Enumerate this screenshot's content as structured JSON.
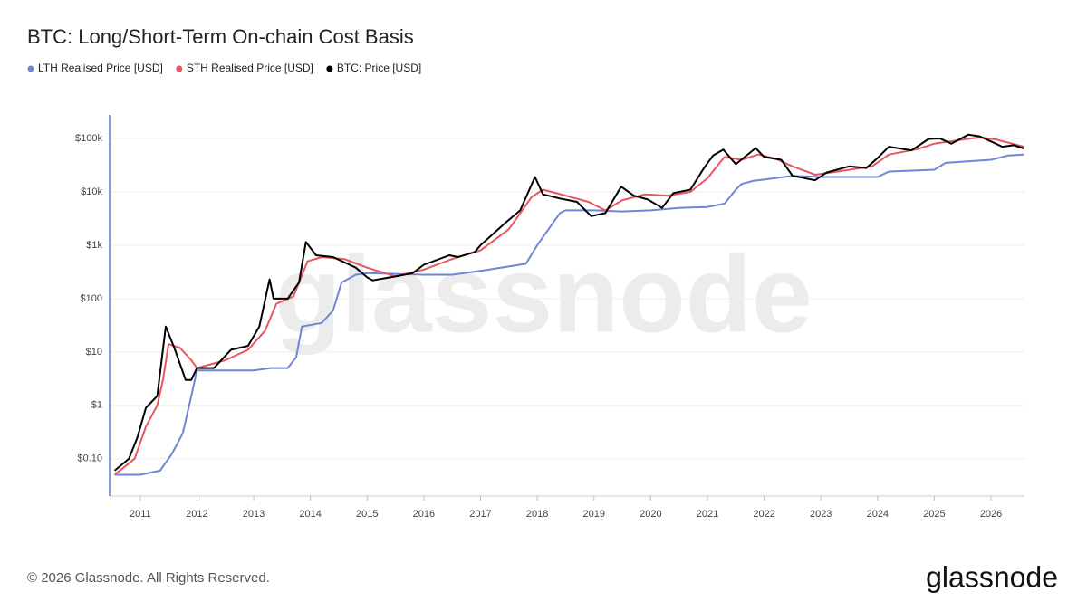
{
  "chart_data": {
    "type": "line",
    "title": "BTC: Long/Short-Term On-chain Cost Basis",
    "watermark": "glassnode",
    "footer": "© 2026 Glassnode. All Rights Reserved.",
    "logo": "glassnode",
    "log_scale": true,
    "grid": true,
    "legend": "top-left",
    "xlim": [
      2010.46,
      2026.59
    ],
    "xticks": [
      2011,
      2012,
      2013,
      2014,
      2015,
      2016,
      2017,
      2018,
      2019,
      2020,
      2021,
      2022,
      2023,
      2024,
      2025,
      2026
    ],
    "ylim": [
      0.02,
      276000
    ],
    "yticks": [
      {
        "value": 0.1,
        "label": "$0.10"
      },
      {
        "value": 1,
        "label": "$1"
      },
      {
        "value": 10,
        "label": "$10"
      },
      {
        "value": 100,
        "label": "$100"
      },
      {
        "value": 1000,
        "label": "$1k"
      },
      {
        "value": 10000,
        "label": "$10k"
      },
      {
        "value": 100000,
        "label": "$100k"
      }
    ],
    "series": [
      {
        "name": "LTH Realised Price [USD]",
        "color": "#6f86d6",
        "x": [
          2010.55,
          2011.0,
          2011.35,
          2011.55,
          2011.75,
          2011.9,
          2012.0,
          2012.5,
          2013.0,
          2013.3,
          2013.6,
          2013.75,
          2013.85,
          2014.2,
          2014.4,
          2014.55,
          2014.8,
          2015.0,
          2016.0,
          2016.5,
          2017.0,
          2017.5,
          2017.8,
          2018.0,
          2018.2,
          2018.4,
          2018.5,
          2019.0,
          2019.5,
          2020.0,
          2020.5,
          2021.0,
          2021.3,
          2021.5,
          2021.6,
          2021.8,
          2022.0,
          2022.5,
          2023.0,
          2024.0,
          2024.2,
          2025.0,
          2025.2,
          2026.0,
          2026.3,
          2026.58
        ],
        "values": [
          0.05,
          0.05,
          0.06,
          0.12,
          0.3,
          1.5,
          4.5,
          4.5,
          4.5,
          5,
          5,
          8,
          30,
          35,
          60,
          200,
          280,
          300,
          280,
          280,
          330,
          400,
          450,
          1000,
          2000,
          4000,
          4500,
          4500,
          4300,
          4500,
          5000,
          5200,
          6000,
          11000,
          14000,
          16000,
          17000,
          20000,
          19000,
          19000,
          24000,
          26000,
          35000,
          40000,
          48000,
          50000
        ]
      },
      {
        "name": "STH Realised Price [USD]",
        "color": "#e8575f",
        "x": [
          2010.55,
          2010.9,
          2011.1,
          2011.3,
          2011.4,
          2011.5,
          2011.7,
          2011.9,
          2012.0,
          2012.5,
          2012.9,
          2013.2,
          2013.4,
          2013.7,
          2013.95,
          2014.2,
          2014.6,
          2015.0,
          2015.5,
          2016.0,
          2016.5,
          2017.0,
          2017.5,
          2017.9,
          2018.1,
          2018.5,
          2018.9,
          2019.2,
          2019.5,
          2019.9,
          2020.3,
          2020.7,
          2021.0,
          2021.3,
          2021.6,
          2021.9,
          2022.2,
          2022.5,
          2022.9,
          2023.3,
          2023.9,
          2024.2,
          2024.7,
          2025.0,
          2025.5,
          2025.8,
          2026.1,
          2026.58
        ],
        "values": [
          0.05,
          0.1,
          0.4,
          1.0,
          3,
          14,
          12,
          7,
          5,
          7,
          11,
          25,
          80,
          110,
          500,
          600,
          550,
          380,
          260,
          350,
          550,
          800,
          2000,
          8000,
          11000,
          8500,
          6500,
          4500,
          7000,
          9000,
          8500,
          10000,
          18000,
          45000,
          40000,
          50000,
          42000,
          30000,
          21000,
          24000,
          30000,
          50000,
          63000,
          80000,
          95000,
          105000,
          95000,
          70000
        ]
      },
      {
        "name": "BTC: Price [USD]",
        "color": "#000000",
        "x": [
          2010.55,
          2010.8,
          2010.95,
          2011.1,
          2011.3,
          2011.45,
          2011.6,
          2011.8,
          2011.9,
          2012.0,
          2012.3,
          2012.6,
          2012.9,
          2013.1,
          2013.28,
          2013.35,
          2013.6,
          2013.8,
          2013.92,
          2014.1,
          2014.4,
          2014.8,
          2015.0,
          2015.1,
          2015.5,
          2015.8,
          2016.0,
          2016.45,
          2016.6,
          2016.9,
          2017.0,
          2017.45,
          2017.7,
          2017.96,
          2018.1,
          2018.4,
          2018.7,
          2018.95,
          2019.2,
          2019.48,
          2019.7,
          2019.95,
          2020.2,
          2020.4,
          2020.7,
          2020.95,
          2021.1,
          2021.28,
          2021.5,
          2021.85,
          2022.0,
          2022.3,
          2022.5,
          2022.9,
          2023.1,
          2023.5,
          2023.8,
          2024.0,
          2024.2,
          2024.6,
          2024.9,
          2025.1,
          2025.3,
          2025.6,
          2025.8,
          2026.0,
          2026.2,
          2026.4,
          2026.58
        ],
        "values": [
          0.06,
          0.1,
          0.25,
          0.9,
          1.5,
          30,
          12,
          3,
          3,
          5,
          5,
          11,
          13,
          30,
          230,
          100,
          100,
          200,
          1150,
          650,
          600,
          380,
          250,
          220,
          260,
          300,
          430,
          650,
          600,
          750,
          1000,
          2700,
          4500,
          19000,
          9000,
          7500,
          6500,
          3500,
          4000,
          12500,
          8500,
          7200,
          5000,
          9500,
          11000,
          29000,
          48000,
          62000,
          33000,
          66000,
          45000,
          40000,
          20000,
          16500,
          23000,
          30000,
          28000,
          43000,
          70000,
          60000,
          98000,
          100000,
          80000,
          118000,
          110000,
          88000,
          70000,
          75000,
          65000
        ]
      }
    ]
  }
}
